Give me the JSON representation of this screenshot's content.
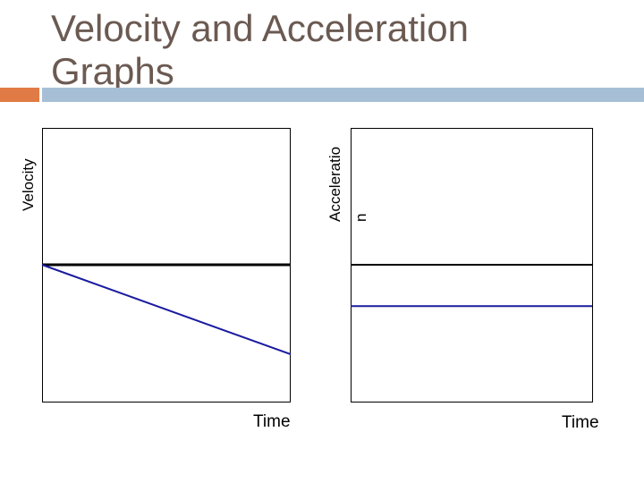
{
  "slide": {
    "title_line1": "Velocity and Acceleration",
    "title_line2": "Graphs",
    "colors": {
      "title": "#6b5a52",
      "accent": "#e07b45",
      "rule": "#a6bfd7"
    }
  },
  "chart_data": [
    {
      "type": "line",
      "title": "",
      "ylabel": "Velocity",
      "xlabel": "Time",
      "xlim": [
        0,
        1
      ],
      "ylim": [
        -1,
        1
      ],
      "series": [
        {
          "name": "zero-reference",
          "color": "#000000",
          "x": [
            0,
            1
          ],
          "y": [
            0,
            0
          ]
        },
        {
          "name": "velocity",
          "color": "#1a1aa0",
          "x": [
            0,
            1
          ],
          "y": [
            0,
            -0.65
          ]
        }
      ]
    },
    {
      "type": "line",
      "title": "",
      "ylabel": "Acceleration",
      "ylabel_lines": [
        "Acceleratio",
        "n"
      ],
      "xlabel": "Time",
      "xlim": [
        0,
        1
      ],
      "ylim": [
        -1,
        1
      ],
      "series": [
        {
          "name": "zero-reference",
          "color": "#000000",
          "x": [
            0,
            1
          ],
          "y": [
            0,
            0
          ]
        },
        {
          "name": "acceleration",
          "color": "#1a1aa0",
          "x": [
            0,
            1
          ],
          "y": [
            -0.3,
            -0.3
          ]
        }
      ]
    }
  ]
}
